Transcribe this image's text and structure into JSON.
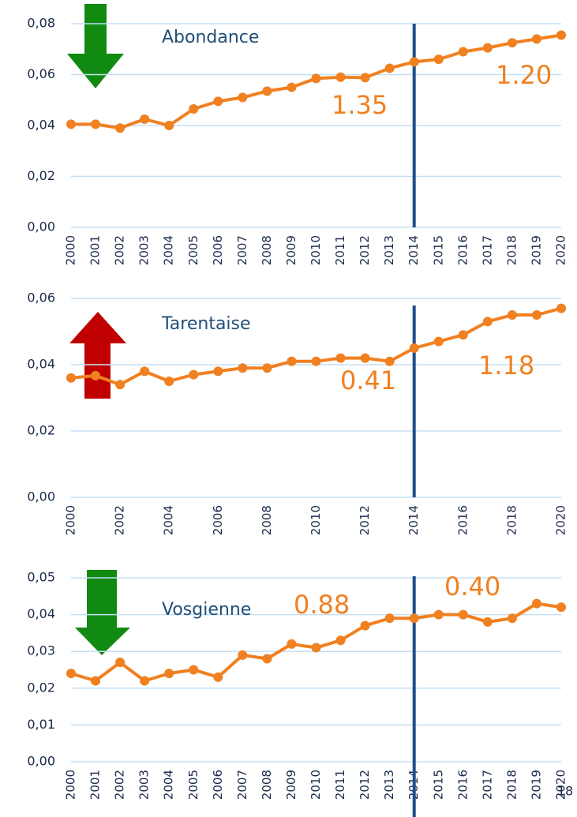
{
  "chart_data": [
    {
      "type": "line",
      "title": "Abondance",
      "x": [
        2000,
        2001,
        2002,
        2003,
        2004,
        2005,
        2006,
        2007,
        2008,
        2009,
        2010,
        2011,
        2012,
        2013,
        2014,
        2015,
        2016,
        2017,
        2018,
        2019,
        2020
      ],
      "series": [
        {
          "name": "Abondance",
          "color": "#f08020",
          "values": [
            0.0405,
            0.0405,
            0.039,
            0.0425,
            0.04,
            0.0465,
            0.0495,
            0.051,
            0.0535,
            0.055,
            0.0585,
            0.059,
            0.0588,
            0.0625,
            0.065,
            0.066,
            0.069,
            0.0705,
            0.0725,
            0.074,
            0.0755
          ]
        }
      ],
      "xlim": [
        2000,
        2020
      ],
      "xticks": [
        2000,
        2001,
        2002,
        2003,
        2004,
        2005,
        2006,
        2007,
        2008,
        2009,
        2010,
        2011,
        2012,
        2013,
        2014,
        2015,
        2016,
        2017,
        2018,
        2019,
        2020
      ],
      "ylim": [
        0,
        0.08
      ],
      "yticks": [
        {
          "value": 0,
          "label": "0,00"
        },
        {
          "value": 0.02,
          "label": "0,02"
        },
        {
          "value": 0.04,
          "label": "0,04"
        },
        {
          "value": 0.06,
          "label": "0,06"
        },
        {
          "value": 0.08,
          "label": "0,08"
        }
      ],
      "grid": true,
      "vline": 2014,
      "annotations": [
        "1.35",
        "1.20"
      ]
    },
    {
      "type": "line",
      "title": "Tarentaise",
      "x": [
        2000,
        2001,
        2002,
        2003,
        2004,
        2005,
        2006,
        2007,
        2008,
        2009,
        2010,
        2011,
        2012,
        2013,
        2014,
        2015,
        2016,
        2017,
        2018,
        2019,
        2020
      ],
      "series": [
        {
          "name": "Tarentaise",
          "color": "#f08020",
          "values": [
            0.036,
            0.0367,
            0.034,
            0.038,
            0.035,
            0.037,
            0.038,
            0.039,
            0.039,
            0.041,
            0.041,
            0.042,
            0.042,
            0.041,
            0.045,
            0.047,
            0.049,
            0.053,
            0.055,
            0.055,
            0.057
          ]
        }
      ],
      "xlim": [
        2000,
        2020
      ],
      "xticks": [
        2000,
        2002,
        2004,
        2006,
        2008,
        2010,
        2012,
        2014,
        2016,
        2018,
        2020
      ],
      "ylim": [
        0,
        0.06
      ],
      "yticks": [
        {
          "value": 0,
          "label": "0,00"
        },
        {
          "value": 0.02,
          "label": "0,02"
        },
        {
          "value": 0.04,
          "label": "0,04"
        },
        {
          "value": 0.06,
          "label": "0,06"
        }
      ],
      "grid": true,
      "vline": 2014,
      "annotations": [
        "0.41",
        "1.18"
      ]
    },
    {
      "type": "line",
      "title": "Vosgienne",
      "x": [
        2000,
        2001,
        2002,
        2003,
        2004,
        2005,
        2006,
        2007,
        2008,
        2009,
        2010,
        2011,
        2012,
        2013,
        2014,
        2015,
        2016,
        2017,
        2018,
        2019,
        2020
      ],
      "series": [
        {
          "name": "Vosgienne",
          "color": "#f08020",
          "values": [
            0.024,
            0.022,
            0.027,
            0.022,
            0.024,
            0.025,
            0.023,
            0.029,
            0.028,
            0.032,
            0.031,
            0.033,
            0.037,
            0.039,
            0.039,
            0.04,
            0.04,
            0.038,
            0.039,
            0.043,
            0.042
          ]
        }
      ],
      "xlim": [
        2000,
        2020
      ],
      "xticks": [
        2000,
        2001,
        2002,
        2003,
        2004,
        2005,
        2006,
        2007,
        2008,
        2009,
        2010,
        2011,
        2012,
        2013,
        2014,
        2015,
        2016,
        2017,
        2018,
        2019,
        2020
      ],
      "ylim": [
        0,
        0.05
      ],
      "yticks": [
        {
          "value": 0,
          "label": "0,00"
        },
        {
          "value": 0.01,
          "label": "0,01"
        },
        {
          "value": 0.02,
          "label": "0,02"
        },
        {
          "value": 0.03,
          "label": "0,03"
        },
        {
          "value": 0.04,
          "label": "0,04"
        },
        {
          "value": 0.05,
          "label": "0,05"
        }
      ],
      "grid": true,
      "vline": 2014,
      "annotations": [
        "0.88",
        "0.40"
      ]
    }
  ],
  "page_number": "18"
}
